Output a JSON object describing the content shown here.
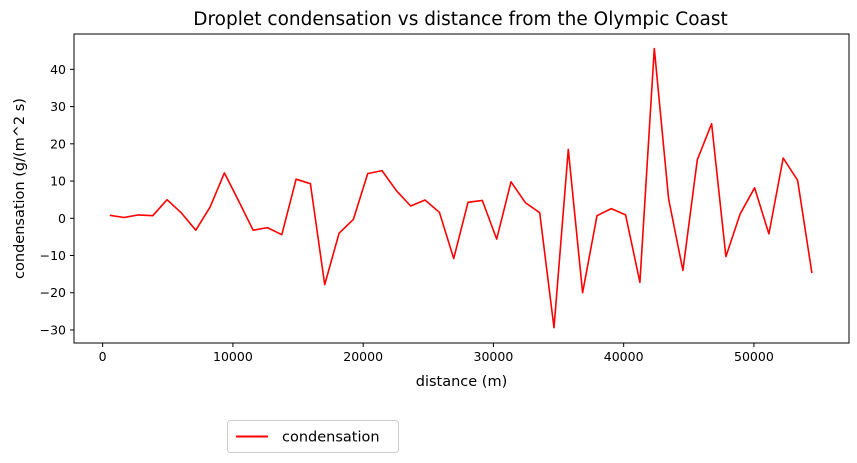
{
  "chart_data": {
    "type": "line",
    "title": "Droplet condensation vs distance from the Olympic Coast",
    "xlabel": "distance (m)",
    "ylabel": "condensation (g/(m^2 s)",
    "xlim": [
      -2200,
      57300
    ],
    "ylim": [
      -33.5,
      49.5
    ],
    "xticks": [
      0,
      10000,
      20000,
      30000,
      40000,
      50000
    ],
    "yticks": [
      -30,
      -20,
      -10,
      0,
      10,
      20,
      30,
      40
    ],
    "grid": false,
    "legend_position": "below-left",
    "series": [
      {
        "name": "condensation",
        "color": "#ff0000",
        "x": [
          550,
          1650,
          2750,
          3850,
          4950,
          6050,
          7150,
          8250,
          9350,
          10450,
          11550,
          12650,
          13750,
          14850,
          15950,
          17050,
          18150,
          19250,
          20350,
          21450,
          22550,
          23650,
          24750,
          25850,
          26950,
          28050,
          29150,
          30250,
          31350,
          32450,
          33550,
          34650,
          35750,
          36850,
          37950,
          39050,
          40150,
          41250,
          42350,
          43450,
          44550,
          45650,
          46750,
          47850,
          48950,
          50050,
          51150,
          52250,
          53350,
          54450
        ],
        "values": [
          0.8,
          0.2,
          0.9,
          0.7,
          5.0,
          1.4,
          -3.2,
          3.0,
          12.2,
          4.6,
          -3.2,
          -2.5,
          -4.4,
          10.5,
          9.3,
          -17.8,
          -4.0,
          -0.3,
          12.0,
          12.8,
          7.4,
          3.3,
          4.9,
          1.6,
          -10.8,
          4.3,
          4.8,
          -5.6,
          9.8,
          4.2,
          1.5,
          -29.4,
          18.5,
          -20.0,
          0.7,
          2.6,
          0.9,
          -17.2,
          45.6,
          5.2,
          -14.0,
          15.7,
          25.4,
          -10.3,
          1.2,
          8.2,
          -4.2,
          16.2,
          10.2,
          -14.7
        ]
      }
    ]
  }
}
